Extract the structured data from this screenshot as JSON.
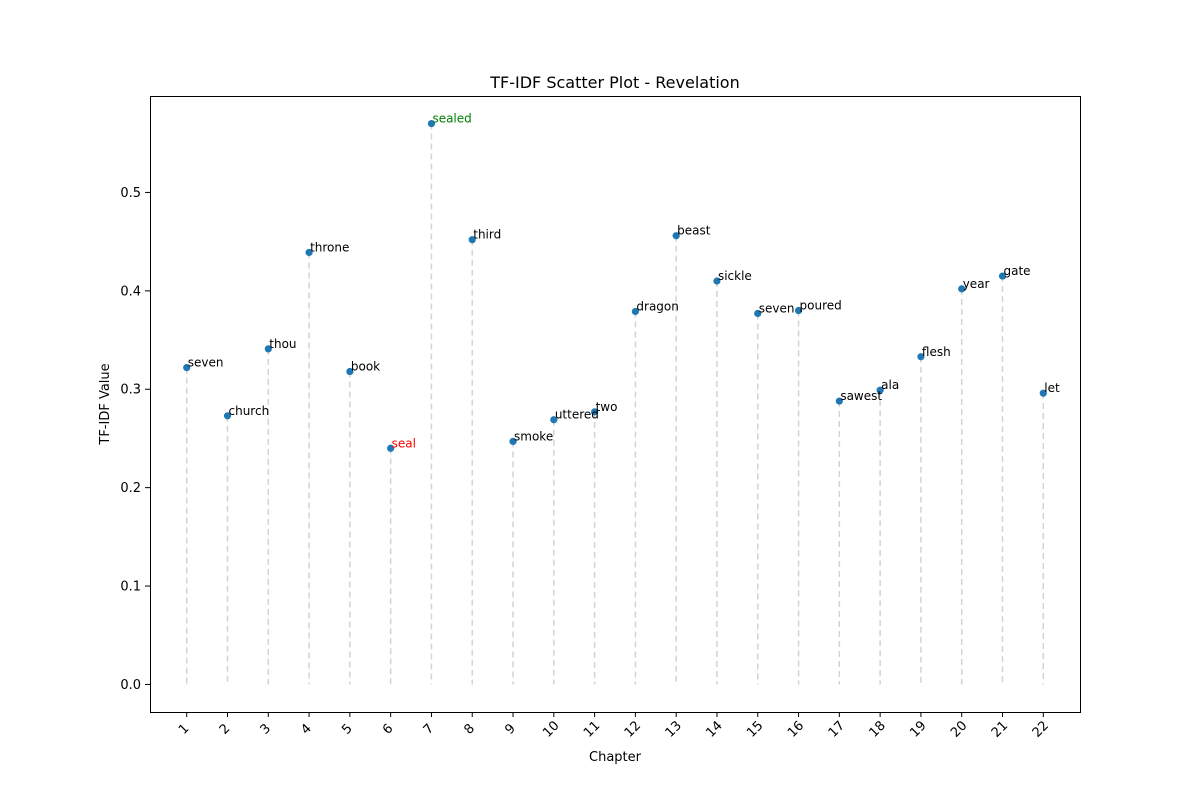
{
  "chart_data": {
    "type": "scatter",
    "title": "TF-IDF Scatter Plot - Revelation",
    "xlabel": "Chapter",
    "ylabel": "TF-IDF Value",
    "xlim": [
      0.1,
      22.9
    ],
    "ylim": [
      -0.028,
      0.598
    ],
    "x_ticks": [
      "1",
      "2",
      "3",
      "4",
      "5",
      "6",
      "7",
      "8",
      "9",
      "10",
      "11",
      "12",
      "13",
      "14",
      "15",
      "16",
      "17",
      "18",
      "19",
      "20",
      "21",
      "22"
    ],
    "y_ticks": [
      "0.0",
      "0.1",
      "0.2",
      "0.3",
      "0.4",
      "0.5"
    ],
    "y_tick_values": [
      0.0,
      0.1,
      0.2,
      0.3,
      0.4,
      0.5
    ],
    "colors": {
      "point": "#1f77b4",
      "stem": "#d3d3d3",
      "default_label": "#000000",
      "max_label": "#008000",
      "min_label": "#ff0000"
    },
    "points": [
      {
        "x": 1,
        "y": 0.322,
        "word": "seven",
        "label_color": "#000000"
      },
      {
        "x": 2,
        "y": 0.273,
        "word": "church",
        "label_color": "#000000"
      },
      {
        "x": 3,
        "y": 0.341,
        "word": "thou",
        "label_color": "#000000"
      },
      {
        "x": 4,
        "y": 0.439,
        "word": "throne",
        "label_color": "#000000"
      },
      {
        "x": 5,
        "y": 0.318,
        "word": "book",
        "label_color": "#000000"
      },
      {
        "x": 6,
        "y": 0.24,
        "word": "seal",
        "label_color": "#ff0000"
      },
      {
        "x": 7,
        "y": 0.57,
        "word": "sealed",
        "label_color": "#008000"
      },
      {
        "x": 8,
        "y": 0.452,
        "word": "third",
        "label_color": "#000000"
      },
      {
        "x": 9,
        "y": 0.247,
        "word": "smoke",
        "label_color": "#000000"
      },
      {
        "x": 10,
        "y": 0.269,
        "word": "uttered",
        "label_color": "#000000"
      },
      {
        "x": 11,
        "y": 0.277,
        "word": "two",
        "label_color": "#000000"
      },
      {
        "x": 12,
        "y": 0.379,
        "word": "dragon",
        "label_color": "#000000"
      },
      {
        "x": 13,
        "y": 0.456,
        "word": "beast",
        "label_color": "#000000"
      },
      {
        "x": 14,
        "y": 0.41,
        "word": "sickle",
        "label_color": "#000000"
      },
      {
        "x": 15,
        "y": 0.377,
        "word": "seven",
        "label_color": "#000000"
      },
      {
        "x": 16,
        "y": 0.38,
        "word": "poured",
        "label_color": "#000000"
      },
      {
        "x": 17,
        "y": 0.288,
        "word": "sawest",
        "label_color": "#000000"
      },
      {
        "x": 18,
        "y": 0.299,
        "word": "ala",
        "label_color": "#000000"
      },
      {
        "x": 19,
        "y": 0.333,
        "word": "flesh",
        "label_color": "#000000"
      },
      {
        "x": 20,
        "y": 0.402,
        "word": "year",
        "label_color": "#000000"
      },
      {
        "x": 21,
        "y": 0.415,
        "word": "gate",
        "label_color": "#000000"
      },
      {
        "x": 22,
        "y": 0.296,
        "word": "let",
        "label_color": "#000000"
      }
    ]
  }
}
